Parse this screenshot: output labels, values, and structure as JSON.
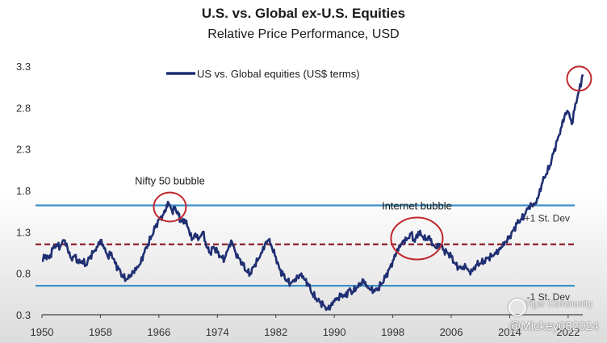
{
  "chart_data": {
    "type": "line",
    "title": "U.S. vs. Global ex-U.S. Equities",
    "subtitle": "Relative Price Performance, USD",
    "xlabel": "",
    "ylabel": "",
    "xlim": [
      1950,
      2024
    ],
    "ylim": [
      0.3,
      3.3
    ],
    "x_ticks": [
      "1950",
      "1958",
      "1966",
      "1974",
      "1982",
      "1990",
      "1998",
      "2006",
      "2014",
      "2022"
    ],
    "y_ticks": [
      "0.3",
      "0.8",
      "1.3",
      "1.8",
      "2.3",
      "2.8",
      "3.3"
    ],
    "legend": "top-left",
    "series": [
      {
        "name": "US vs. Global equities (US$ terms)",
        "color": "#1f2f72",
        "points": [
          [
            1950.0,
            0.95
          ],
          [
            1950.5,
            1.02
          ],
          [
            1951.0,
            0.98
          ],
          [
            1951.5,
            1.1
          ],
          [
            1952.0,
            1.15
          ],
          [
            1952.5,
            1.12
          ],
          [
            1953.0,
            1.2
          ],
          [
            1953.5,
            1.1
          ],
          [
            1954.0,
            0.98
          ],
          [
            1954.5,
            1.02
          ],
          [
            1955.0,
            0.92
          ],
          [
            1955.5,
            0.95
          ],
          [
            1956.0,
            0.9
          ],
          [
            1956.5,
            0.98
          ],
          [
            1957.0,
            1.05
          ],
          [
            1957.5,
            1.12
          ],
          [
            1958.0,
            1.2
          ],
          [
            1958.5,
            1.1
          ],
          [
            1959.0,
            1.0
          ],
          [
            1959.5,
            1.05
          ],
          [
            1960.0,
            0.92
          ],
          [
            1960.5,
            0.85
          ],
          [
            1961.0,
            0.78
          ],
          [
            1961.5,
            0.72
          ],
          [
            1962.0,
            0.75
          ],
          [
            1962.5,
            0.82
          ],
          [
            1963.0,
            0.88
          ],
          [
            1963.5,
            0.92
          ],
          [
            1964.0,
            1.05
          ],
          [
            1964.5,
            1.15
          ],
          [
            1965.0,
            1.25
          ],
          [
            1965.5,
            1.35
          ],
          [
            1966.0,
            1.45
          ],
          [
            1966.5,
            1.5
          ],
          [
            1967.0,
            1.58
          ],
          [
            1967.3,
            1.65
          ],
          [
            1967.8,
            1.55
          ],
          [
            1968.2,
            1.6
          ],
          [
            1968.7,
            1.5
          ],
          [
            1969.0,
            1.42
          ],
          [
            1969.5,
            1.45
          ],
          [
            1970.0,
            1.35
          ],
          [
            1970.5,
            1.2
          ],
          [
            1971.0,
            1.28
          ],
          [
            1971.5,
            1.22
          ],
          [
            1972.0,
            1.3
          ],
          [
            1972.5,
            1.12
          ],
          [
            1973.0,
            1.05
          ],
          [
            1973.5,
            1.12
          ],
          [
            1974.0,
            1.05
          ],
          [
            1974.5,
            1.0
          ],
          [
            1975.0,
            0.98
          ],
          [
            1975.5,
            1.1
          ],
          [
            1976.0,
            1.18
          ],
          [
            1976.5,
            1.05
          ],
          [
            1977.0,
            0.98
          ],
          [
            1977.5,
            0.9
          ],
          [
            1978.0,
            0.82
          ],
          [
            1978.5,
            0.8
          ],
          [
            1979.0,
            0.88
          ],
          [
            1979.5,
            0.95
          ],
          [
            1980.0,
            1.05
          ],
          [
            1980.5,
            1.15
          ],
          [
            1981.0,
            1.2
          ],
          [
            1981.5,
            1.1
          ],
          [
            1982.0,
            1.0
          ],
          [
            1982.5,
            0.85
          ],
          [
            1983.0,
            0.78
          ],
          [
            1983.5,
            0.72
          ],
          [
            1984.0,
            0.68
          ],
          [
            1984.5,
            0.7
          ],
          [
            1985.0,
            0.75
          ],
          [
            1985.5,
            0.8
          ],
          [
            1986.0,
            0.72
          ],
          [
            1986.5,
            0.65
          ],
          [
            1987.0,
            0.55
          ],
          [
            1987.5,
            0.5
          ],
          [
            1988.0,
            0.45
          ],
          [
            1988.5,
            0.42
          ],
          [
            1989.0,
            0.38
          ],
          [
            1989.5,
            0.4
          ],
          [
            1990.0,
            0.46
          ],
          [
            1990.5,
            0.5
          ],
          [
            1991.0,
            0.55
          ],
          [
            1991.5,
            0.52
          ],
          [
            1992.0,
            0.6
          ],
          [
            1992.5,
            0.58
          ],
          [
            1993.0,
            0.62
          ],
          [
            1993.5,
            0.65
          ],
          [
            1994.0,
            0.72
          ],
          [
            1994.5,
            0.65
          ],
          [
            1995.0,
            0.6
          ],
          [
            1995.5,
            0.58
          ],
          [
            1996.0,
            0.62
          ],
          [
            1996.5,
            0.68
          ],
          [
            1997.0,
            0.75
          ],
          [
            1997.5,
            0.85
          ],
          [
            1998.0,
            0.95
          ],
          [
            1998.5,
            1.05
          ],
          [
            1999.0,
            1.12
          ],
          [
            1999.5,
            1.2
          ],
          [
            2000.0,
            1.22
          ],
          [
            2000.5,
            1.28
          ],
          [
            2001.0,
            1.18
          ],
          [
            2001.5,
            1.3
          ],
          [
            2002.0,
            1.25
          ],
          [
            2002.5,
            1.2
          ],
          [
            2003.0,
            1.25
          ],
          [
            2003.5,
            1.15
          ],
          [
            2004.0,
            1.1
          ],
          [
            2004.5,
            1.15
          ],
          [
            2005.0,
            1.08
          ],
          [
            2005.5,
            1.05
          ],
          [
            2006.0,
            1.0
          ],
          [
            2006.5,
            0.92
          ],
          [
            2007.0,
            0.88
          ],
          [
            2007.5,
            0.85
          ],
          [
            2008.0,
            0.88
          ],
          [
            2008.5,
            0.82
          ],
          [
            2009.0,
            0.85
          ],
          [
            2009.5,
            0.9
          ],
          [
            2010.0,
            0.92
          ],
          [
            2010.5,
            0.95
          ],
          [
            2011.0,
            0.98
          ],
          [
            2011.5,
            1.0
          ],
          [
            2012.0,
            1.05
          ],
          [
            2012.5,
            1.08
          ],
          [
            2013.0,
            1.12
          ],
          [
            2013.5,
            1.18
          ],
          [
            2014.0,
            1.25
          ],
          [
            2014.5,
            1.32
          ],
          [
            2015.0,
            1.4
          ],
          [
            2015.5,
            1.45
          ],
          [
            2016.0,
            1.5
          ],
          [
            2016.5,
            1.58
          ],
          [
            2017.0,
            1.62
          ],
          [
            2017.5,
            1.65
          ],
          [
            2018.0,
            1.75
          ],
          [
            2018.5,
            1.9
          ],
          [
            2019.0,
            2.0
          ],
          [
            2019.5,
            2.1
          ],
          [
            2020.0,
            2.25
          ],
          [
            2020.5,
            2.4
          ],
          [
            2021.0,
            2.55
          ],
          [
            2021.5,
            2.7
          ],
          [
            2022.0,
            2.75
          ],
          [
            2022.5,
            2.6
          ],
          [
            2023.0,
            2.85
          ],
          [
            2023.5,
            3.0
          ],
          [
            2024.0,
            3.2
          ]
        ]
      }
    ],
    "reference_lines": [
      {
        "label": "+1 St. Dev",
        "value": 1.62,
        "color": "#3a8fc8",
        "style": "solid"
      },
      {
        "label": "",
        "value": 1.15,
        "color": "#8b1e2d",
        "style": "dashed"
      },
      {
        "label": "-1 St. Dev",
        "value": 0.65,
        "color": "#3a8fc8",
        "style": "solid"
      }
    ],
    "annotations": [
      {
        "label": "Nifty 50 bubble",
        "x": 1967.5,
        "y": 1.6,
        "circle_color": "#c0282e"
      },
      {
        "label": "Internet bubble",
        "x": 2001.3,
        "y": 1.22,
        "circle_color": "#c0282e"
      },
      {
        "label": "",
        "x": 2023.5,
        "y": 3.15,
        "circle_color": "#c0282e"
      }
    ]
  },
  "watermark": {
    "community": "Tiger Community",
    "handle": "@Mickey082024"
  }
}
